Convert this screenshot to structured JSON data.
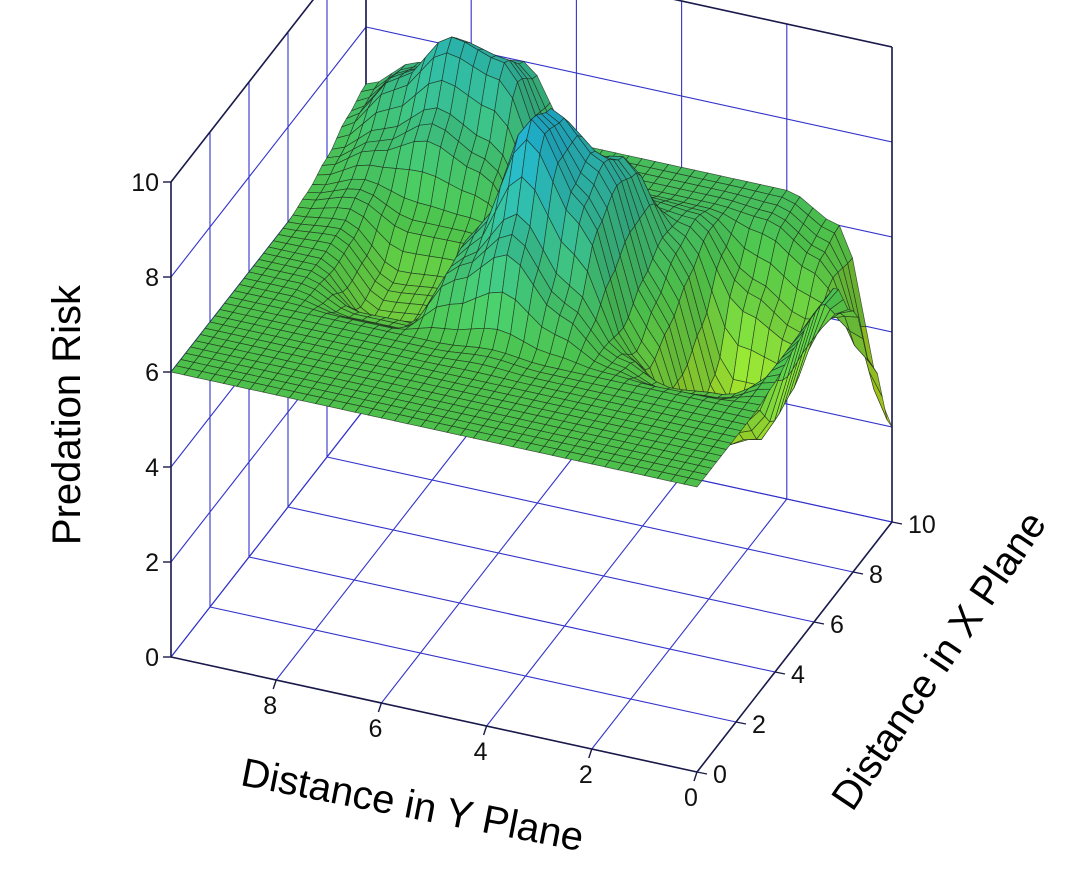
{
  "chart_data": {
    "type": "surface",
    "title": "",
    "zlabel": "Predation Risk",
    "ylabel": "Distance in Y Plane",
    "xlabel": "Distance in X Plane",
    "zlim": [
      0,
      10
    ],
    "ylim": [
      0,
      10
    ],
    "xlim": [
      0,
      10
    ],
    "z_ticks": [
      "0",
      "2",
      "4",
      "6",
      "8",
      "10"
    ],
    "y_ticks": [
      "0",
      "2",
      "4",
      "6",
      "8"
    ],
    "x_ticks": [
      "0",
      "2",
      "4",
      "6",
      "8",
      "10"
    ],
    "grid": true,
    "grid_color": "#3333cc",
    "colormap": [
      "#c8e619",
      "#4cc04a",
      "#1fa6c0"
    ],
    "surface_grid_x": [
      0,
      1,
      2,
      3,
      4,
      5,
      6,
      7,
      8,
      9,
      10
    ],
    "surface_grid_y": [
      0,
      1,
      2,
      3,
      4,
      5,
      6,
      7,
      8,
      9,
      10
    ],
    "surface_z": [
      [
        6.0,
        6.0,
        6.0,
        6.0,
        6.1,
        6.3,
        6.5,
        6.5,
        5.5,
        3.8,
        2.0
      ],
      [
        6.0,
        6.0,
        6.0,
        6.0,
        5.6,
        4.5,
        3.6,
        3.8,
        4.8,
        5.8,
        6.0
      ],
      [
        6.0,
        6.0,
        6.0,
        6.0,
        5.5,
        3.6,
        3.2,
        3.7,
        5.4,
        6.4,
        6.5
      ],
      [
        6.0,
        6.0,
        6.0,
        6.0,
        5.9,
        5.5,
        6.0,
        6.5,
        6.7,
        6.5,
        6.5
      ],
      [
        6.0,
        6.0,
        6.0,
        6.0,
        6.8,
        8.3,
        8.7,
        8.3,
        6.8,
        6.5,
        6.5
      ],
      [
        6.0,
        6.0,
        6.0,
        6.1,
        8.0,
        9.9,
        9.6,
        8.0,
        6.5,
        6.5,
        6.5
      ],
      [
        6.0,
        6.0,
        6.0,
        6.0,
        7.1,
        7.4,
        6.8,
        5.9,
        5.7,
        6.3,
        6.5
      ],
      [
        6.0,
        6.0,
        6.0,
        6.0,
        5.6,
        5.1,
        5.3,
        6.0,
        7.0,
        8.5,
        8.0
      ],
      [
        6.0,
        6.0,
        6.0,
        6.0,
        5.6,
        5.0,
        5.2,
        6.0,
        7.5,
        8.8,
        7.8
      ],
      [
        6.0,
        6.0,
        6.0,
        6.0,
        6.0,
        6.0,
        6.1,
        6.4,
        6.9,
        7.7,
        7.5
      ],
      [
        6.0,
        6.0,
        6.0,
        6.0,
        6.0,
        6.0,
        6.0,
        6.1,
        6.3,
        6.6,
        6.8
      ]
    ]
  }
}
